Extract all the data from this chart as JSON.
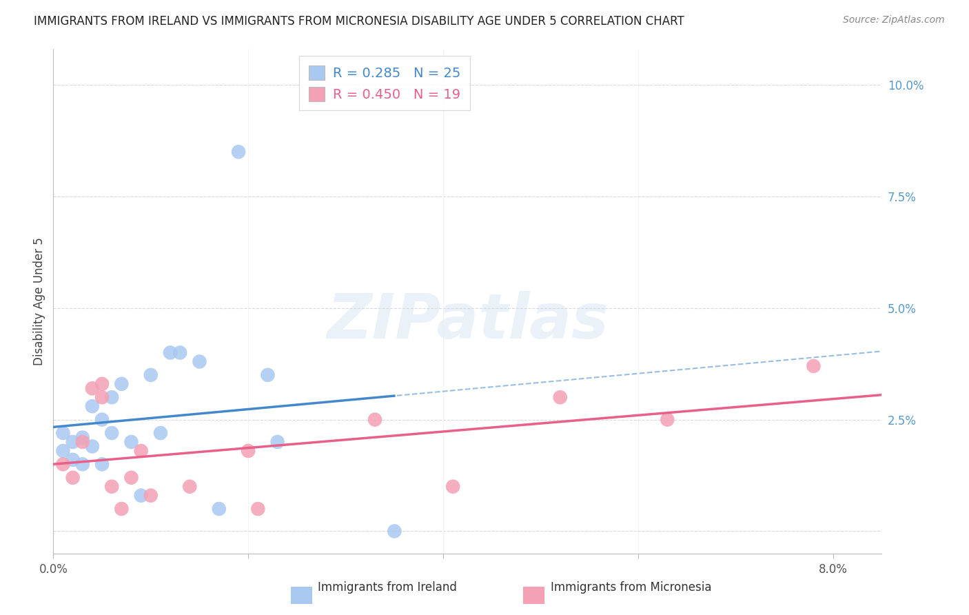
{
  "title": "IMMIGRANTS FROM IRELAND VS IMMIGRANTS FROM MICRONESIA DISABILITY AGE UNDER 5 CORRELATION CHART",
  "source": "Source: ZipAtlas.com",
  "ylabel": "Disability Age Under 5",
  "xlim": [
    0.0,
    0.085
  ],
  "ylim": [
    -0.005,
    0.108
  ],
  "xticks": [
    0.0,
    0.02,
    0.04,
    0.06,
    0.08
  ],
  "xtick_labels": [
    "0.0%",
    "",
    "",
    "",
    "8.0%"
  ],
  "yticks": [
    0.0,
    0.025,
    0.05,
    0.075,
    0.1
  ],
  "ytick_labels": [
    "",
    "2.5%",
    "5.0%",
    "7.5%",
    "10.0%"
  ],
  "ireland_color": "#a8c8f0",
  "micronesia_color": "#f4a0b5",
  "ireland_line_color": "#4488cc",
  "micronesia_line_color": "#e8608a",
  "ireland_R": 0.285,
  "ireland_N": 25,
  "micronesia_R": 0.45,
  "micronesia_N": 19,
  "legend_label_ireland": "Immigrants from Ireland",
  "legend_label_micronesia": "Immigrants from Micronesia",
  "ireland_x": [
    0.001,
    0.001,
    0.002,
    0.002,
    0.003,
    0.003,
    0.004,
    0.004,
    0.005,
    0.005,
    0.006,
    0.006,
    0.007,
    0.008,
    0.009,
    0.01,
    0.011,
    0.012,
    0.013,
    0.015,
    0.017,
    0.019,
    0.022,
    0.023,
    0.035
  ],
  "ireland_y": [
    0.018,
    0.022,
    0.016,
    0.02,
    0.015,
    0.021,
    0.028,
    0.019,
    0.015,
    0.025,
    0.022,
    0.03,
    0.033,
    0.02,
    0.008,
    0.035,
    0.022,
    0.04,
    0.04,
    0.038,
    0.005,
    0.085,
    0.035,
    0.02,
    0.0
  ],
  "micronesia_x": [
    0.001,
    0.002,
    0.003,
    0.004,
    0.005,
    0.005,
    0.006,
    0.007,
    0.008,
    0.009,
    0.01,
    0.014,
    0.02,
    0.021,
    0.033,
    0.041,
    0.052,
    0.063,
    0.078
  ],
  "micronesia_y": [
    0.015,
    0.012,
    0.02,
    0.032,
    0.03,
    0.033,
    0.01,
    0.005,
    0.012,
    0.018,
    0.008,
    0.01,
    0.018,
    0.005,
    0.025,
    0.01,
    0.03,
    0.025,
    0.037
  ],
  "watermark": "ZIPatlas",
  "background_color": "#ffffff",
  "grid_color": "#d8d8d8",
  "right_axis_color": "#5599cc",
  "title_color": "#222222",
  "source_color": "#888888",
  "axis_label_color": "#444444"
}
